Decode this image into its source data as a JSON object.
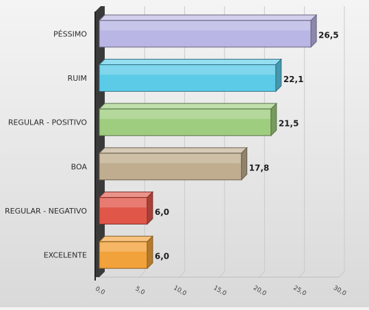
{
  "chart_data": {
    "type": "bar",
    "orientation": "horizontal",
    "style": "3d",
    "categories": [
      "PÉSSIMO",
      "RUIM",
      "REGULAR - POSITIVO",
      "BOA",
      "REGULAR - NEGATIVO",
      "EXCELENTE"
    ],
    "values": [
      26.5,
      22.1,
      21.5,
      17.8,
      6.0,
      6.0
    ],
    "data_labels": [
      "26,5",
      "22,1",
      "21,5",
      "17,8",
      "6,0",
      "6,0"
    ],
    "colors": [
      "#b9b5e4",
      "#5ccbe8",
      "#9fcd7f",
      "#c0ad8f",
      "#e0574a",
      "#f2a23b"
    ],
    "x_ticks": [
      "0,0",
      "5,0",
      "10,0",
      "15,0",
      "20,0",
      "25,0",
      "30,0"
    ],
    "xlim": [
      0,
      30
    ],
    "grid": true,
    "legend": "none",
    "title": "",
    "xlabel": "",
    "ylabel": ""
  }
}
